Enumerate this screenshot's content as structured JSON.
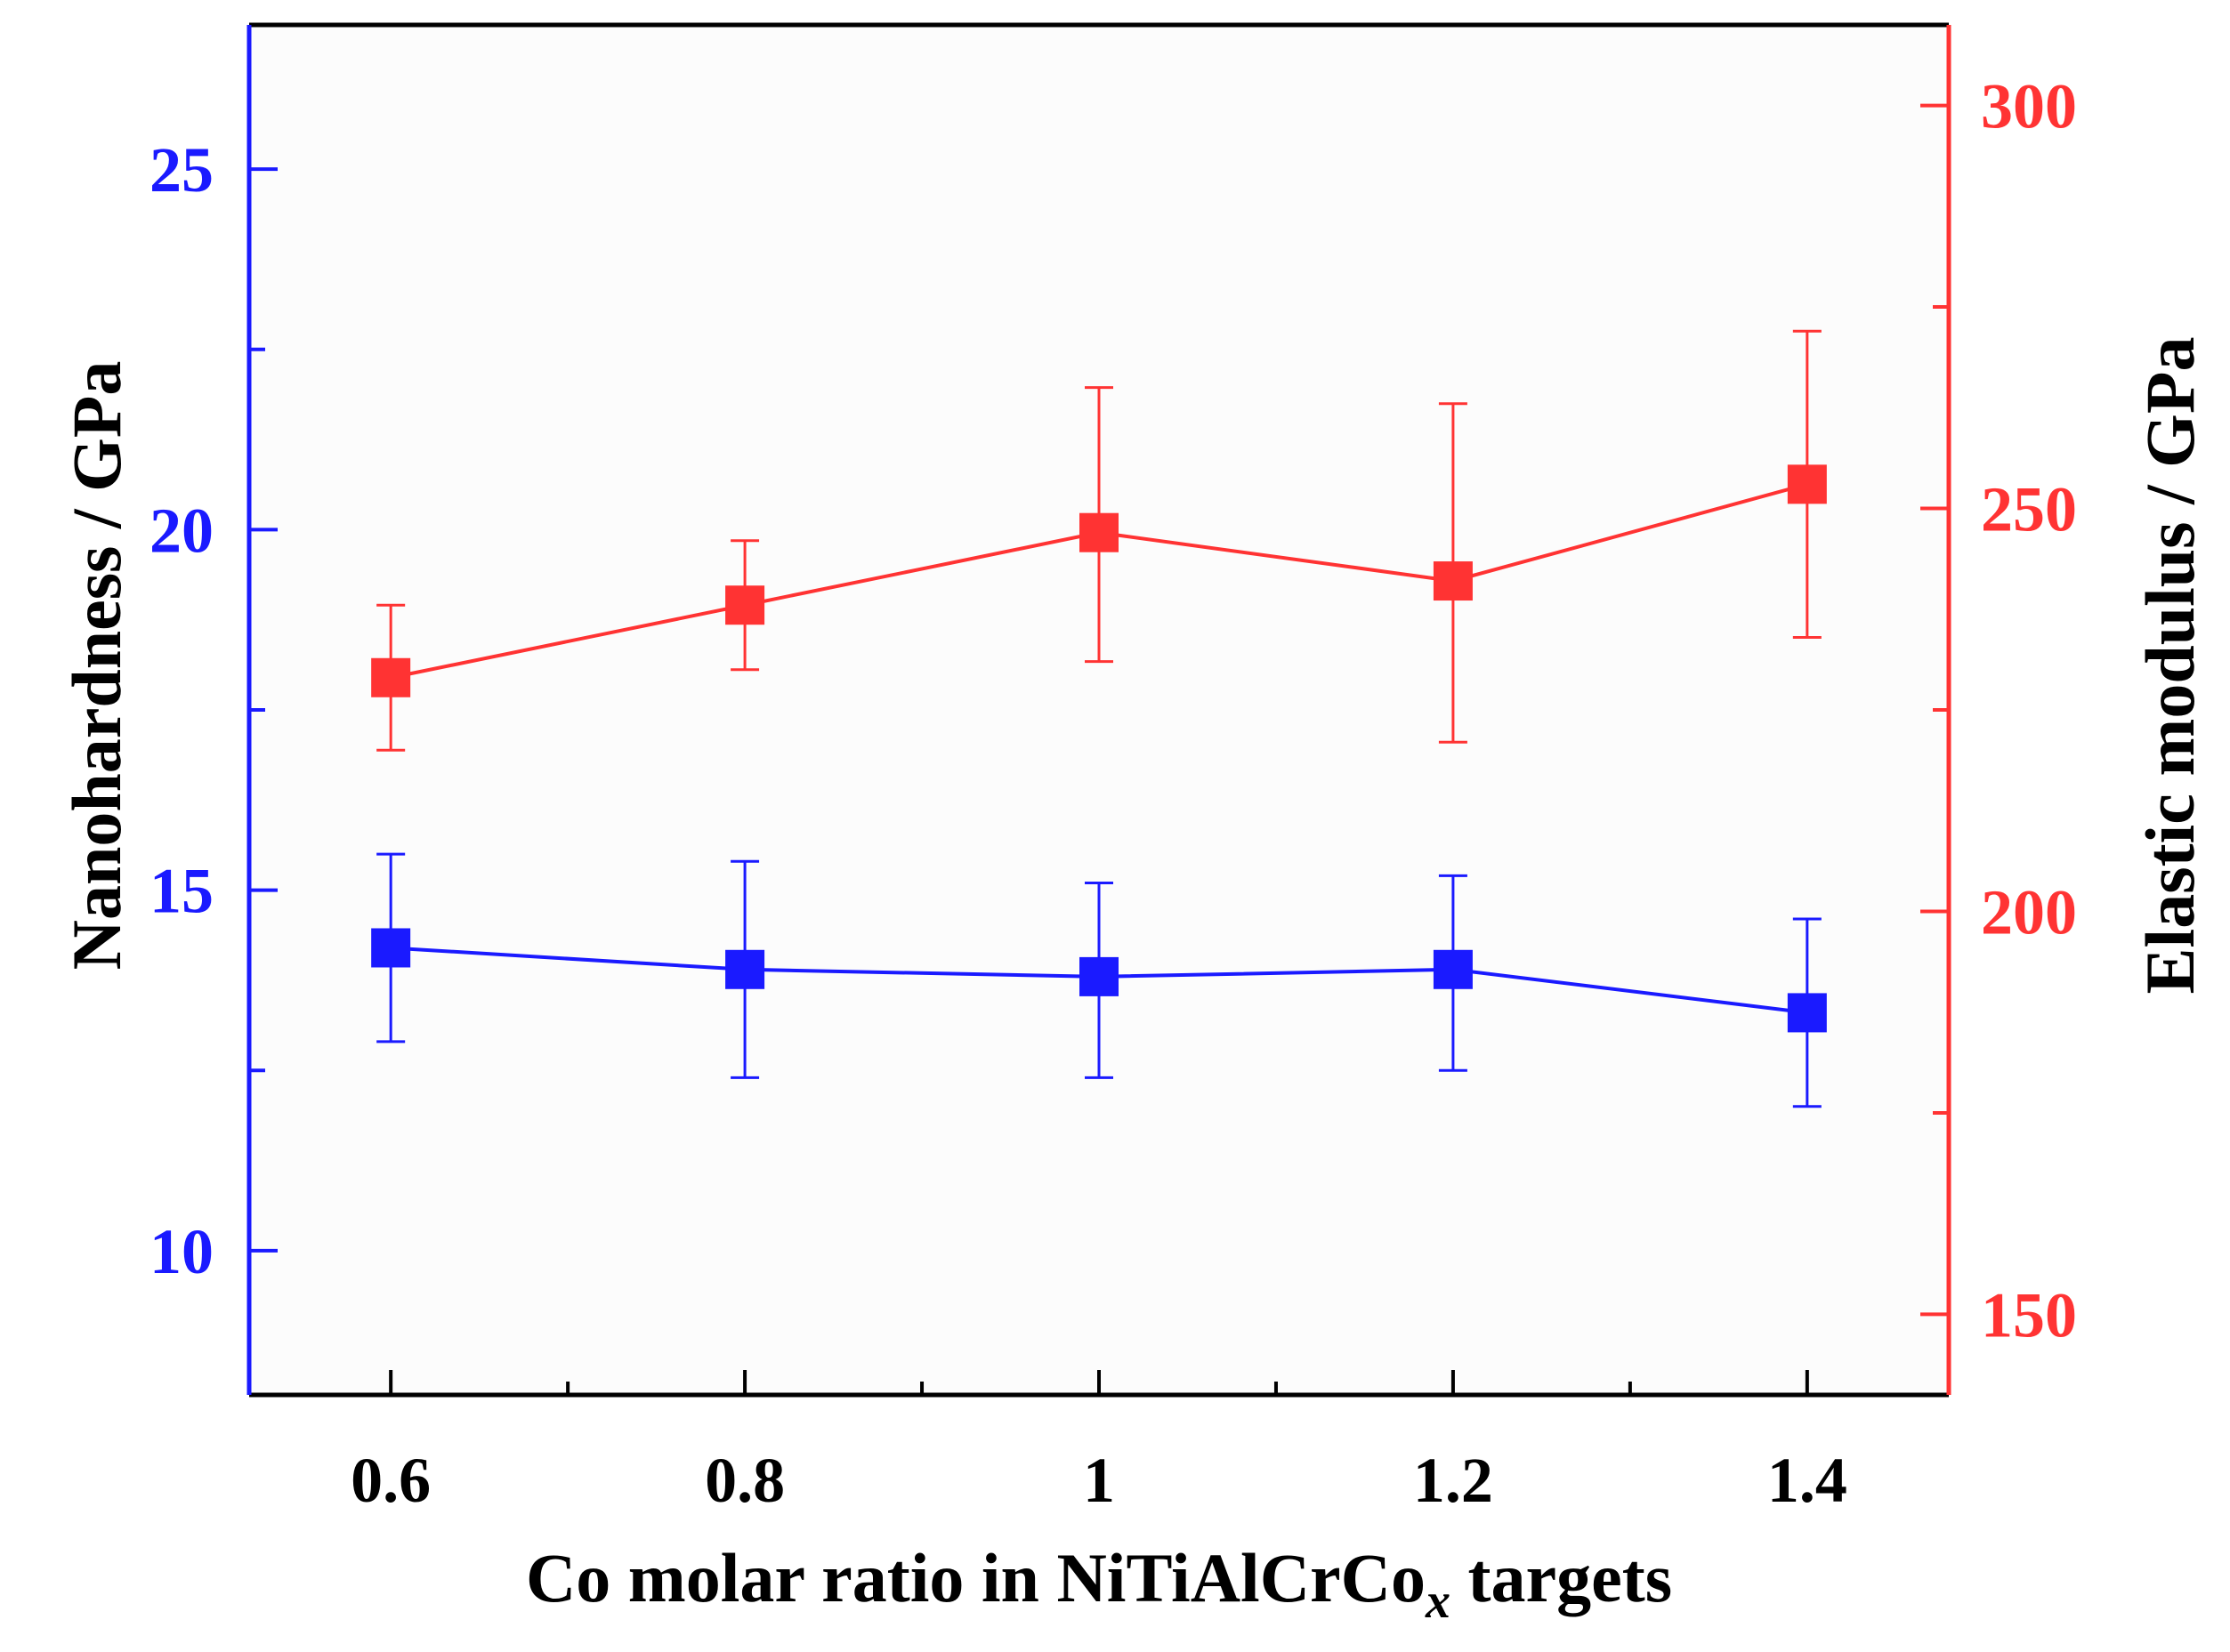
{
  "chart_data": {
    "type": "line",
    "x": [
      0.6,
      0.8,
      1.0,
      1.2,
      1.4
    ],
    "x_tick_labels": [
      "0.6",
      "0.8",
      "1",
      "1.2",
      "1.4"
    ],
    "xlabel_prefix": "Co molar ratio in NiTiAlCrCo",
    "xlabel_subscript": "x",
    "xlabel_suffix": " targets",
    "xlim": [
      0.52,
      1.48
    ],
    "left_axis": {
      "label": "Nanohardness / GPa",
      "ylim": [
        8,
        27
      ],
      "ticks": [
        10,
        15,
        20,
        25
      ],
      "tick_labels": [
        "10",
        "15",
        "20",
        "25"
      ],
      "color": "#1a1aff"
    },
    "right_axis": {
      "label": "Elastic modulus / GPa",
      "ylim": [
        140,
        310
      ],
      "ticks": [
        150,
        200,
        250,
        300
      ],
      "tick_labels": [
        "150",
        "200",
        "250",
        "300"
      ],
      "color": "#ff3333"
    },
    "series": [
      {
        "name": "Nanohardness",
        "axis": "left",
        "color": "#1a1aff",
        "values": [
          14.2,
          13.9,
          13.8,
          13.9,
          13.3
        ],
        "err_upper": [
          15.5,
          15.4,
          15.1,
          15.2,
          14.6
        ],
        "err_lower": [
          12.9,
          12.4,
          12.4,
          12.5,
          12.0
        ]
      },
      {
        "name": "Elastic modulus",
        "axis": "right",
        "color": "#ff3333",
        "values": [
          229,
          238,
          247,
          241,
          253
        ],
        "err_upper": [
          238,
          246,
          265,
          263,
          272
        ],
        "err_lower": [
          220,
          230,
          231,
          221,
          234
        ]
      }
    ]
  }
}
